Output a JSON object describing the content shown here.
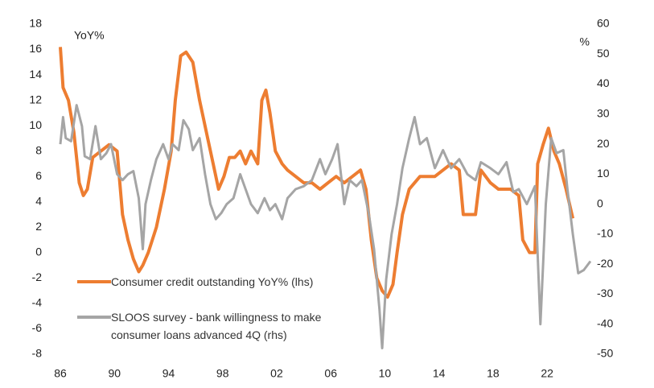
{
  "chart_data": {
    "type": "line",
    "y_label": "YoY%",
    "y2_label": "%",
    "xlim": [
      1986,
      2025.5
    ],
    "xticks": [
      {
        "value": 1986,
        "label": "86"
      },
      {
        "value": 1990,
        "label": "90"
      },
      {
        "value": 1994,
        "label": "94"
      },
      {
        "value": 1998,
        "label": "98"
      },
      {
        "value": 2002,
        "label": "02"
      },
      {
        "value": 2006,
        "label": "06"
      },
      {
        "value": 2010,
        "label": "10"
      },
      {
        "value": 2014,
        "label": "14"
      },
      {
        "value": 2018,
        "label": "18"
      },
      {
        "value": 2022,
        "label": "22"
      }
    ],
    "ylim": [
      -8,
      18
    ],
    "yticks": [
      -8,
      -6,
      -4,
      -2,
      0,
      2,
      4,
      6,
      8,
      10,
      12,
      14,
      16,
      18
    ],
    "y2lim": [
      -50,
      60
    ],
    "y2ticks": [
      -50,
      -40,
      -30,
      -20,
      -10,
      0,
      10,
      20,
      30,
      40,
      50,
      60
    ],
    "series": [
      {
        "name": "Consumer credit outstanding YoY% (lhs)",
        "color": "#ed7d31",
        "axis": "y",
        "x": [
          1986.0,
          1986.2,
          1986.6,
          1987.0,
          1987.4,
          1987.7,
          1988.0,
          1988.4,
          1989.0,
          1989.6,
          1990.2,
          1990.6,
          1991.0,
          1991.4,
          1991.8,
          1992.1,
          1992.5,
          1993.1,
          1993.7,
          1994.2,
          1994.5,
          1994.9,
          1995.3,
          1995.8,
          1996.3,
          1996.9,
          1997.3,
          1997.7,
          1998.1,
          1998.5,
          1998.9,
          1999.3,
          1999.7,
          2000.1,
          2000.6,
          2000.9,
          2001.2,
          2001.5,
          2001.9,
          2002.4,
          2002.8,
          2003.4,
          2004.0,
          2004.6,
          2005.2,
          2005.8,
          2006.4,
          2007.0,
          2007.6,
          2008.2,
          2008.6,
          2009.0,
          2009.4,
          2009.8,
          2010.2,
          2010.6,
          2010.9,
          2011.3,
          2011.8,
          2012.2,
          2012.6,
          2013.1,
          2013.7,
          2014.3,
          2014.9,
          2015.5,
          2015.8,
          2016.2,
          2016.7,
          2017.1,
          2017.8,
          2018.4,
          2019.3,
          2019.9,
          2020.2,
          2020.7,
          2021.1,
          2021.3,
          2021.7,
          2022.1,
          2022.5,
          2022.9,
          2023.4,
          2023.9
        ],
        "values": [
          16.2,
          13,
          12,
          9.5,
          5.5,
          4.5,
          5,
          7.5,
          8,
          8.5,
          8,
          3,
          1,
          -0.5,
          -1.5,
          -1,
          0,
          2,
          5,
          8,
          12,
          15.5,
          15.8,
          15,
          12,
          9,
          7,
          5,
          6,
          7.5,
          7.5,
          8,
          7,
          8,
          7,
          12,
          12.8,
          11,
          8,
          7,
          6.5,
          6,
          5.5,
          5.5,
          5,
          5.5,
          6,
          5.5,
          6,
          6.5,
          5,
          1,
          -2,
          -3,
          -3.5,
          -2.5,
          0,
          3,
          5,
          5.5,
          6,
          6,
          6,
          6.5,
          7,
          6.5,
          3,
          3,
          3,
          6.5,
          5.5,
          5,
          5,
          4.5,
          1,
          0,
          0,
          7,
          8.5,
          9.8,
          8,
          7,
          5,
          2.7
        ]
      },
      {
        "name": "SLOOS survey - bank willingness to make consumer loans advanced 4Q (rhs)",
        "color": "#a5a5a5",
        "axis": "y2",
        "x": [
          1986.0,
          1986.2,
          1986.4,
          1986.8,
          1987.2,
          1987.6,
          1987.8,
          1988.2,
          1988.6,
          1989.0,
          1989.4,
          1989.75,
          1990.2,
          1990.6,
          1991.0,
          1991.4,
          1991.8,
          1992.1,
          1992.3,
          1992.7,
          1993.1,
          1993.6,
          1994.0,
          1994.3,
          1994.75,
          1995.1,
          1995.5,
          1995.8,
          1996.3,
          1996.7,
          1997.1,
          1997.5,
          1997.9,
          1998.3,
          1998.8,
          1999.3,
          1999.7,
          2000.1,
          2000.6,
          2001.1,
          2001.5,
          2001.9,
          2002.4,
          2002.8,
          2003.4,
          2004.0,
          2004.6,
          2005.2,
          2005.6,
          2006.1,
          2006.5,
          2007.0,
          2007.4,
          2007.9,
          2008.3,
          2008.8,
          2009.2,
          2009.6,
          2009.8,
          2010.1,
          2010.5,
          2010.9,
          2011.3,
          2011.8,
          2012.2,
          2012.6,
          2013.1,
          2013.7,
          2014.3,
          2014.9,
          2015.5,
          2016.1,
          2016.7,
          2017.1,
          2017.8,
          2018.4,
          2019.0,
          2019.5,
          2019.9,
          2020.5,
          2021.1,
          2021.5,
          2021.9,
          2022.3,
          2022.7,
          2023.2,
          2023.5,
          2023.9,
          2024.3,
          2024.7,
          2025.2
        ],
        "values": [
          20,
          29,
          22,
          21,
          33,
          26,
          16,
          15,
          26,
          15,
          17,
          20,
          10,
          8,
          10,
          11,
          2,
          -15,
          0,
          8,
          15,
          20,
          15,
          20,
          18,
          28,
          25,
          18,
          22,
          10,
          0,
          -5,
          -3,
          0,
          2,
          10,
          5,
          0,
          -3,
          2,
          -2,
          0,
          -5,
          2,
          5,
          6,
          8,
          15,
          10,
          15,
          20,
          0,
          8,
          6,
          8,
          -3,
          -15,
          -35,
          -48,
          -25,
          -10,
          0,
          12,
          22,
          29,
          20,
          22,
          12,
          18,
          12,
          15,
          10,
          8,
          14,
          12,
          10,
          14,
          4,
          5,
          0,
          6,
          -40,
          0,
          22,
          17,
          18,
          5,
          -10,
          -23,
          -22,
          -19
        ]
      }
    ]
  }
}
